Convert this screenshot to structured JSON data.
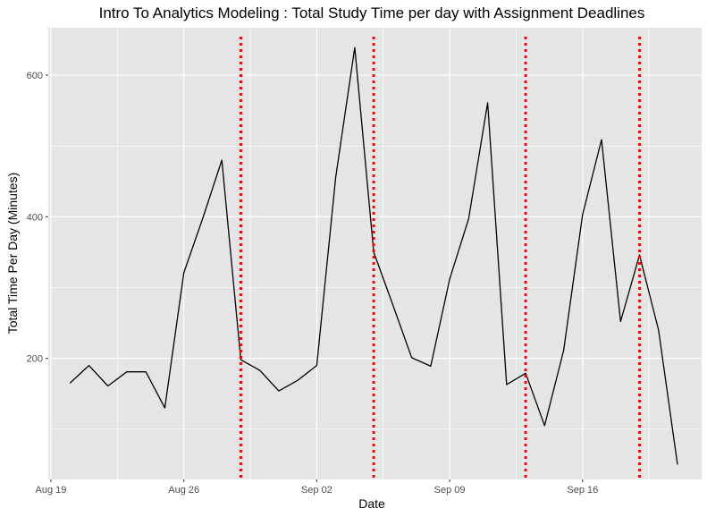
{
  "chart_data": {
    "type": "line",
    "title": "Intro To Analytics Modeling : Total Study Time per day with Assignment Deadlines",
    "xlabel": "Date",
    "ylabel": "Total Time Per Day (Minutes)",
    "x_ticks": [
      {
        "label": "Aug 19",
        "day": 0
      },
      {
        "label": "Aug 26",
        "day": 7
      },
      {
        "label": "Sep 02",
        "day": 14
      },
      {
        "label": "Sep 09",
        "day": 21
      },
      {
        "label": "Sep 16",
        "day": 28
      }
    ],
    "x_reference": "Aug 19",
    "y_ticks": [
      200,
      400,
      600
    ],
    "xlim": [
      -0.14,
      34.27
    ],
    "ylim": [
      29,
      667
    ],
    "series": [
      {
        "name": "Total Study Time",
        "color": "#000000",
        "points": [
          {
            "day": 1,
            "value": 165
          },
          {
            "day": 2,
            "value": 190
          },
          {
            "day": 3,
            "value": 161
          },
          {
            "day": 4,
            "value": 181
          },
          {
            "day": 5,
            "value": 181
          },
          {
            "day": 6,
            "value": 130
          },
          {
            "day": 7,
            "value": 321
          },
          {
            "day": 8,
            "value": 398
          },
          {
            "day": 9,
            "value": 480
          },
          {
            "day": 10,
            "value": 198
          },
          {
            "day": 11,
            "value": 183
          },
          {
            "day": 12,
            "value": 154
          },
          {
            "day": 13,
            "value": 169
          },
          {
            "day": 14,
            "value": 190
          },
          {
            "day": 15,
            "value": 456
          },
          {
            "day": 16,
            "value": 639
          },
          {
            "day": 17,
            "value": 350
          },
          {
            "day": 18,
            "value": 276
          },
          {
            "day": 19,
            "value": 201
          },
          {
            "day": 20,
            "value": 189
          },
          {
            "day": 21,
            "value": 312
          },
          {
            "day": 22,
            "value": 397
          },
          {
            "day": 23,
            "value": 561
          },
          {
            "day": 24,
            "value": 163
          },
          {
            "day": 25,
            "value": 179
          },
          {
            "day": 26,
            "value": 105
          },
          {
            "day": 27,
            "value": 211
          },
          {
            "day": 28,
            "value": 403
          },
          {
            "day": 29,
            "value": 509
          },
          {
            "day": 30,
            "value": 252
          },
          {
            "day": 31,
            "value": 346
          },
          {
            "day": 32,
            "value": 240
          },
          {
            "day": 33,
            "value": 50
          }
        ]
      }
    ],
    "deadlines": [
      {
        "day": 10,
        "label": "Aug 29"
      },
      {
        "day": 17,
        "label": "Sep 05"
      },
      {
        "day": 25,
        "label": "Sep 13"
      },
      {
        "day": 31,
        "label": "Sep 19"
      }
    ],
    "deadline_color": "#ff0000",
    "panel_color": "#e5e5e5",
    "grid_color": "#ffffff",
    "grid": true
  }
}
